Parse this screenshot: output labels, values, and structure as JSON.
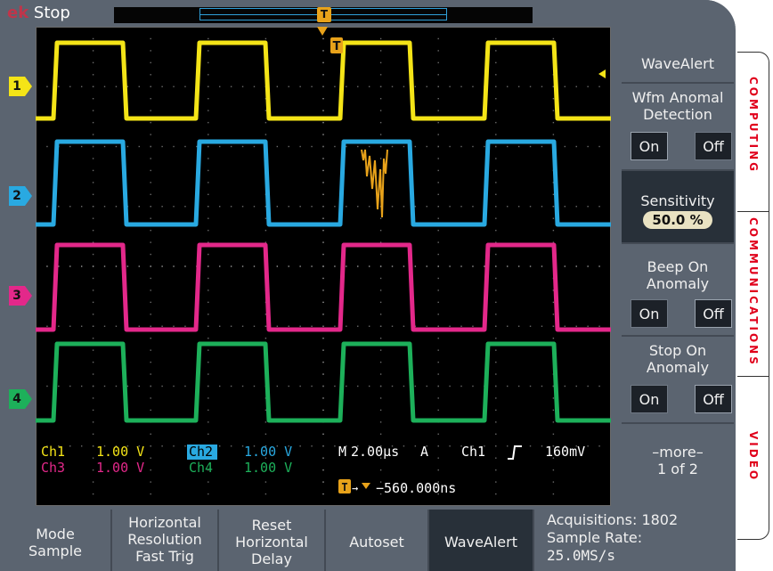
{
  "status": {
    "brand": "ek",
    "run_state": "Stop"
  },
  "record_trigger_glyph": "T",
  "channels": [
    {
      "id": "ch1",
      "marker": "1",
      "color": "#f4e417",
      "scale_name": "Ch1",
      "scale_value": "1.00 V"
    },
    {
      "id": "ch2",
      "marker": "2",
      "color": "#29a9e1",
      "scale_name": "Ch2",
      "scale_value": "1.00 V"
    },
    {
      "id": "ch3",
      "marker": "3",
      "color": "#e3288a",
      "scale_name": "Ch3",
      "scale_value": "1.00 V"
    },
    {
      "id": "ch4",
      "marker": "4",
      "color": "#1db05a",
      "scale_name": "Ch4",
      "scale_value": "1.00 V"
    }
  ],
  "anomaly_color": "#e8a21a",
  "timebase": {
    "mode": "M",
    "scale": "2.00μs",
    "trigger_mode": "A",
    "trigger_source": "Ch1",
    "trigger_level": "160mV"
  },
  "trigger_delay": {
    "glyph": "T",
    "value": "−560.000ns"
  },
  "side_menu": {
    "title": "WaveAlert",
    "anomaly_detection": {
      "label_line1": "Wfm Anomal",
      "label_line2": "Detection",
      "on": "On",
      "off": "Off"
    },
    "sensitivity": {
      "label": "Sensitivity",
      "value": "50.0 %"
    },
    "beep": {
      "label_line1": "Beep On",
      "label_line2": "Anomaly",
      "on": "On",
      "off": "Off"
    },
    "stop": {
      "label_line1": "Stop On",
      "label_line2": "Anomaly",
      "on": "On",
      "off": "Off"
    },
    "more": {
      "label": "–more–",
      "page": "1 of 2"
    }
  },
  "bottom_menu": {
    "mode": {
      "line1": "Mode",
      "line2": "Sample"
    },
    "horizontal_resolution": {
      "line1": "Horizontal",
      "line2": "Resolution",
      "line3": "Fast Trig"
    },
    "reset_delay": {
      "line1": "Reset",
      "line2": "Horizontal",
      "line3": "Delay"
    },
    "autoset": "Autoset",
    "wavealert": "WaveAlert"
  },
  "acquisition": {
    "acquisitions": "Acquisitions: 1802",
    "sample_rate_label": "Sample Rate:",
    "sample_rate_value": "25.0MS/s"
  },
  "applications": [
    "COMPUTING",
    "COMMUNICATIONS",
    "VIDEO"
  ],
  "application_color": "#e0001b"
}
